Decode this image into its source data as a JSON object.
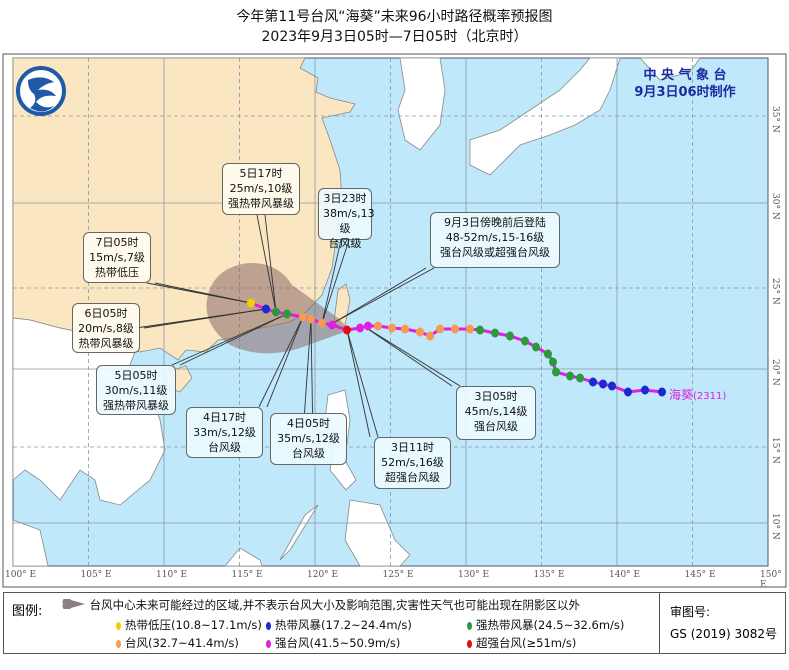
{
  "header": {
    "title": "今年第11号台风“海葵”未来96小时路径概率预报图",
    "subtitle": "2023年9月3日05时—7日05时（北京时）"
  },
  "agency": {
    "name": "中 央 气 象 台",
    "made": "9月3日06时制作"
  },
  "storm": {
    "name": "海葵",
    "code": "(2311)"
  },
  "axes": {
    "lon": [
      "100° E",
      "105° E",
      "110° E",
      "115° E",
      "120° E",
      "125° E",
      "130° E",
      "135° E",
      "140° E",
      "145° E",
      "150° E"
    ],
    "lat": [
      "35° N",
      "30° N",
      "25° N",
      "20° N",
      "15° N",
      "10° N"
    ]
  },
  "callouts": [
    {
      "id": "5d17",
      "lines": [
        "5日17时",
        "25m/s,10级",
        "强热带风暴级"
      ]
    },
    {
      "id": "3d23",
      "lines": [
        "3日23时",
        "38m/s,13级",
        "台风级"
      ]
    },
    {
      "id": "landfall",
      "lines": [
        "9月3日傍晚前后登陆",
        "48-52m/s,15-16级",
        "强台风级或超强台风级"
      ]
    },
    {
      "id": "7d05",
      "lines": [
        "7日05时",
        "15m/s,7级",
        "热带低压"
      ]
    },
    {
      "id": "6d05",
      "lines": [
        "6日05时",
        "20m/s,8级",
        "热带风暴级"
      ]
    },
    {
      "id": "5d05",
      "lines": [
        "5日05时",
        "30m/s,11级",
        "强热带风暴级"
      ]
    },
    {
      "id": "4d17",
      "lines": [
        "4日17时",
        "33m/s,12级",
        "台风级"
      ]
    },
    {
      "id": "4d05",
      "lines": [
        "4日05时",
        "35m/s,12级",
        "台风级"
      ]
    },
    {
      "id": "3d11",
      "lines": [
        "3日11时",
        "52m/s,16级",
        "超强台风级"
      ]
    },
    {
      "id": "3d05",
      "lines": [
        "3日05时",
        "45m/s,14级",
        "强台风级"
      ]
    }
  ],
  "legend": {
    "title": "图例:",
    "cone_text": "台风中心未来可能经过的区域,并不表示台风大小及影响范围,灾害性天气也可能出现在阴影区以外",
    "categories": [
      {
        "label": "热带低压(10.8~17.1m/s)",
        "color": "#f5d000"
      },
      {
        "label": "热带风暴(17.2~24.4m/s)",
        "color": "#1a2ad0"
      },
      {
        "label": "强热带风暴(24.5~32.6m/s)",
        "color": "#2a9a3a"
      },
      {
        "label": "台风(32.7~41.4m/s)",
        "color": "#f59a50"
      },
      {
        "label": "强台风(41.5~50.9m/s)",
        "color": "#e020e0"
      },
      {
        "label": "超强台风(≥51m/s)",
        "color": "#e01010"
      }
    ],
    "review_label": "审图号:",
    "review_no": "GS (2019) 3082号"
  },
  "colors": {
    "sea": "#bfe8fa",
    "china": "#fbe6c2",
    "land_other": "#ffffff",
    "cone": "#8c6a6a",
    "track": "#e020e0"
  }
}
